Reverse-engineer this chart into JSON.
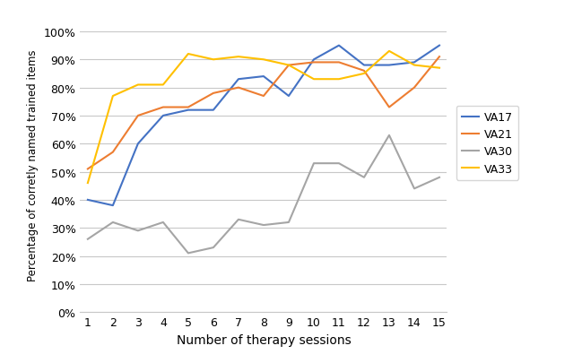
{
  "sessions": [
    1,
    2,
    3,
    4,
    5,
    6,
    7,
    8,
    9,
    10,
    11,
    12,
    13,
    14,
    15
  ],
  "VA17": [
    0.4,
    0.38,
    0.6,
    0.7,
    0.72,
    0.72,
    0.83,
    0.84,
    0.77,
    0.9,
    0.95,
    0.88,
    0.88,
    0.89,
    0.95
  ],
  "VA21": [
    0.51,
    0.57,
    0.7,
    0.73,
    0.73,
    0.78,
    0.8,
    0.77,
    0.88,
    0.89,
    0.89,
    0.86,
    0.73,
    0.8,
    0.91
  ],
  "VA30": [
    0.26,
    0.32,
    0.29,
    0.32,
    0.21,
    0.23,
    0.33,
    0.31,
    0.32,
    0.53,
    0.53,
    0.48,
    0.63,
    0.44,
    0.48
  ],
  "VA33": [
    0.46,
    0.77,
    0.81,
    0.81,
    0.92,
    0.9,
    0.91,
    0.9,
    0.88,
    0.83,
    0.83,
    0.85,
    0.93,
    0.88,
    0.87
  ],
  "colors": {
    "VA17": "#4472C4",
    "VA21": "#ED7D31",
    "VA30": "#A5A5A5",
    "VA33": "#FFC000"
  },
  "xlabel": "Number of therapy sessions",
  "ylabel": "Percentage of corretly named trained items",
  "ylim": [
    0,
    1.05
  ],
  "yticks": [
    0.0,
    0.1,
    0.2,
    0.3,
    0.4,
    0.5,
    0.6,
    0.7,
    0.8,
    0.9,
    1.0
  ],
  "background_color": "#ffffff",
  "grid_color": "#c8c8c8"
}
